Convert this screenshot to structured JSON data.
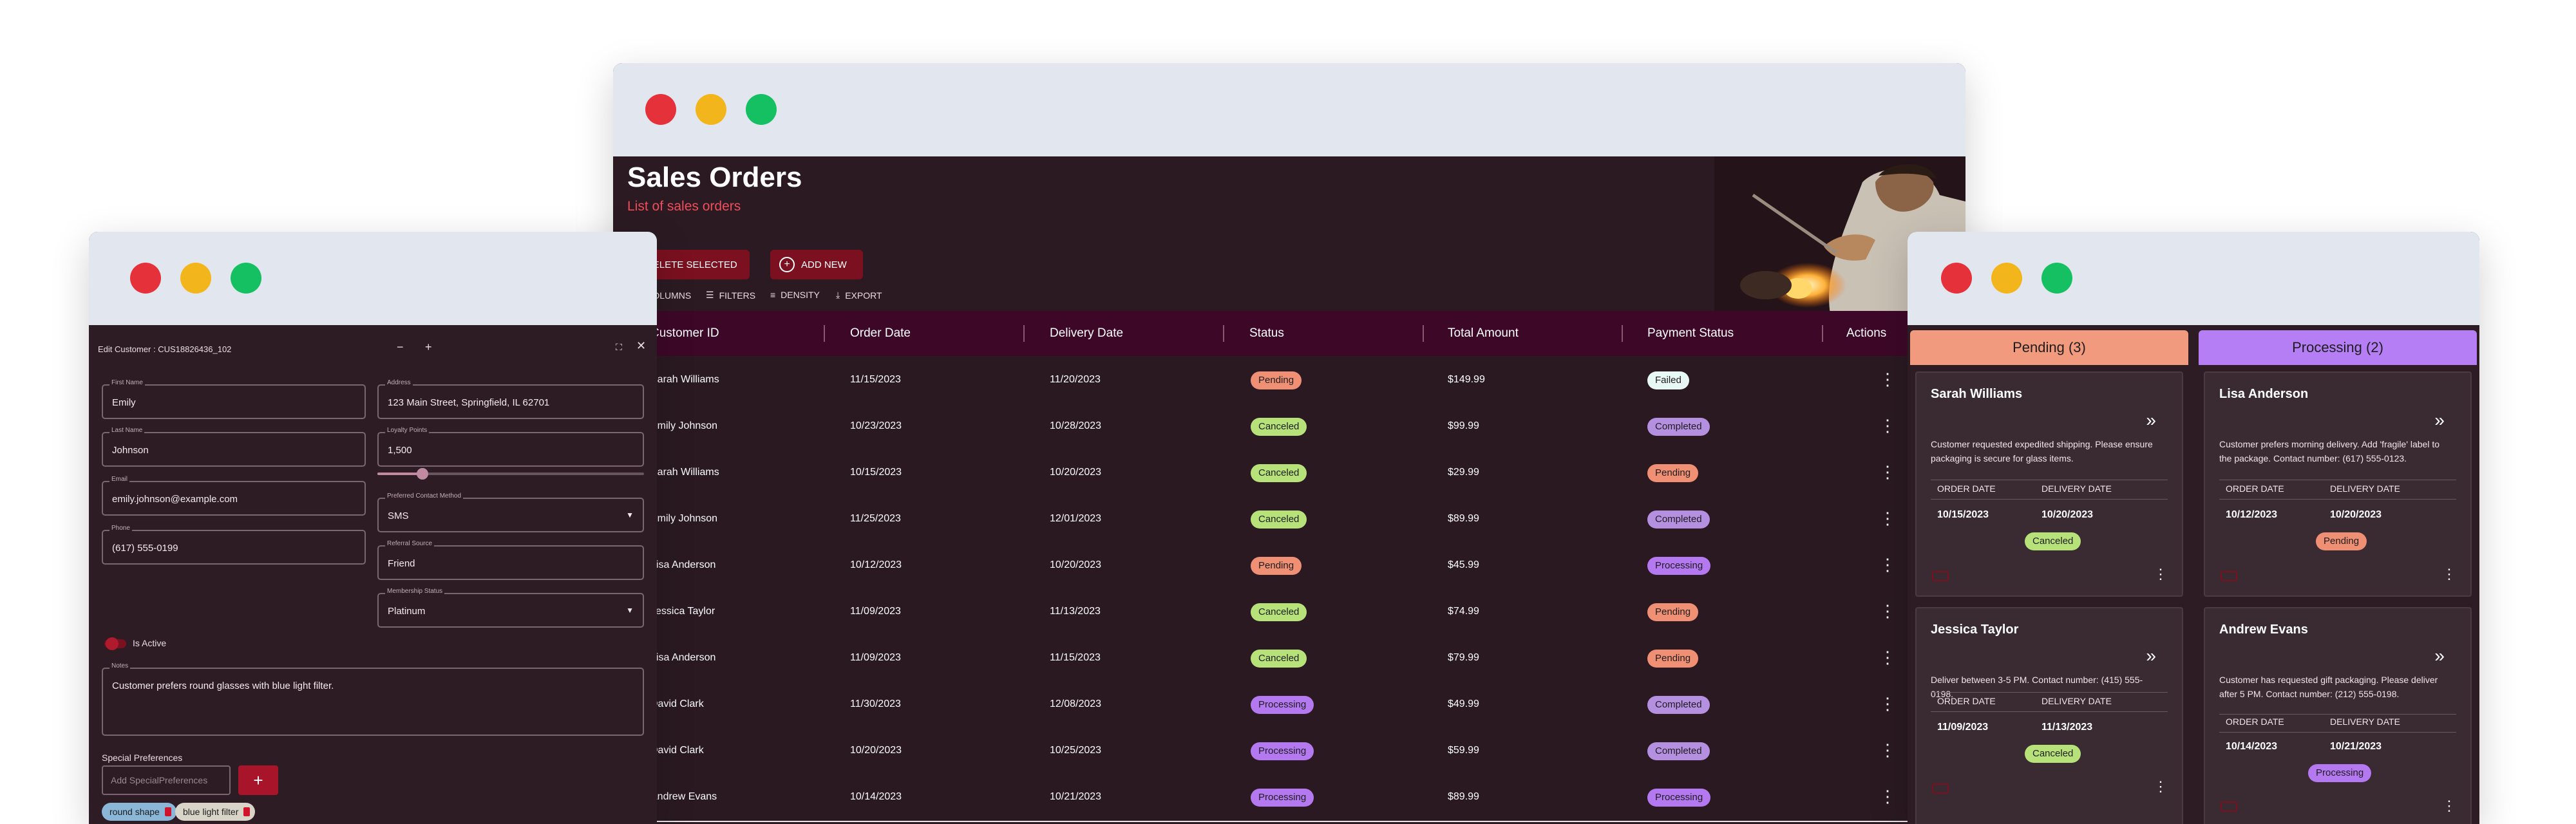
{
  "main": {
    "title": "Sales Orders",
    "subtitle": "List of sales orders",
    "actions": {
      "delete": "DELETE SELECTED",
      "add": "ADD NEW"
    },
    "toolbar": {
      "columns": "COLUMNS",
      "filters": "FILTERS",
      "density": "DENSITY",
      "export": "EXPORT"
    },
    "columns": [
      "Customer ID",
      "Order Date",
      "Delivery Date",
      "Status",
      "Total Amount",
      "Payment Status",
      "Actions"
    ],
    "rows": [
      {
        "customer": "Sarah Williams",
        "order": "11/15/2023",
        "delivery": "11/20/2023",
        "status": "Pending",
        "status_key": "pending",
        "amount": "$149.99",
        "payment": "Failed",
        "payment_key": "failed"
      },
      {
        "customer": "Emily Johnson",
        "order": "10/23/2023",
        "delivery": "10/28/2023",
        "status": "Canceled",
        "status_key": "canceled",
        "amount": "$99.99",
        "payment": "Completed",
        "payment_key": "completed"
      },
      {
        "customer": "Sarah Williams",
        "order": "10/15/2023",
        "delivery": "10/20/2023",
        "status": "Canceled",
        "status_key": "canceled",
        "amount": "$29.99",
        "payment": "Pending",
        "payment_key": "pending"
      },
      {
        "customer": "Emily Johnson",
        "order": "11/25/2023",
        "delivery": "12/01/2023",
        "status": "Canceled",
        "status_key": "canceled",
        "amount": "$89.99",
        "payment": "Completed",
        "payment_key": "completed"
      },
      {
        "customer": "Lisa Anderson",
        "order": "10/12/2023",
        "delivery": "10/20/2023",
        "status": "Pending",
        "status_key": "pending",
        "amount": "$45.99",
        "payment": "Processing",
        "payment_key": "processing"
      },
      {
        "customer": "Jessica Taylor",
        "order": "11/09/2023",
        "delivery": "11/13/2023",
        "status": "Canceled",
        "status_key": "canceled",
        "amount": "$74.99",
        "payment": "Pending",
        "payment_key": "pending"
      },
      {
        "customer": "Lisa Anderson",
        "order": "11/09/2023",
        "delivery": "11/15/2023",
        "status": "Canceled",
        "status_key": "canceled",
        "amount": "$79.99",
        "payment": "Pending",
        "payment_key": "pending"
      },
      {
        "customer": "David Clark",
        "order": "11/30/2023",
        "delivery": "12/08/2023",
        "status": "Processing",
        "status_key": "processing",
        "amount": "$49.99",
        "payment": "Completed",
        "payment_key": "completed"
      },
      {
        "customer": "David Clark",
        "order": "10/20/2023",
        "delivery": "10/25/2023",
        "status": "Processing",
        "status_key": "processing",
        "amount": "$59.99",
        "payment": "Completed",
        "payment_key": "completed"
      },
      {
        "customer": "Andrew Evans",
        "order": "10/14/2023",
        "delivery": "10/21/2023",
        "status": "Processing",
        "status_key": "processing",
        "amount": "$89.99",
        "payment": "Processing",
        "payment_key": "processing"
      }
    ]
  },
  "edit": {
    "title": "Edit Customer : CUS18826436_102",
    "fields": {
      "first_name": {
        "label": "First Name",
        "value": "Emily"
      },
      "last_name": {
        "label": "Last Name",
        "value": "Johnson"
      },
      "email": {
        "label": "Email",
        "value": "emily.johnson@example.com"
      },
      "phone": {
        "label": "Phone",
        "value": "(617) 555-0199"
      },
      "address": {
        "label": "Address",
        "value": "123 Main Street, Springfield, IL 62701"
      },
      "loyalty": {
        "label": "Loyalty Points",
        "value": "1,500"
      },
      "contact": {
        "label": "Preferred Contact Method",
        "value": "SMS"
      },
      "referral": {
        "label": "Referral Source",
        "value": "Friend"
      },
      "membership": {
        "label": "Membership Status",
        "value": "Platinum"
      },
      "notes": {
        "label": "Notes",
        "value": "Customer prefers round glasses with blue light filter."
      }
    },
    "loyalty_fraction": 0.17,
    "is_active_label": "Is Active",
    "special_label": "Special Preferences",
    "special_placeholder": "Add SpecialPreferences",
    "add_symbol": "+",
    "chips": [
      "round shape",
      "blue light filter"
    ]
  },
  "kanban": {
    "columns": [
      {
        "title": "Pending (3)",
        "color": "#f29a7e"
      },
      {
        "title": "Processing (2)",
        "color": "#b57ef5"
      }
    ],
    "order_date_label": "ORDER DATE",
    "delivery_date_label": "DELIVERY DATE",
    "cards": [
      {
        "name": "Sarah Williams",
        "note": "Customer requested expedited shipping. Please ensure packaging is secure for glass items.",
        "order": "10/15/2023",
        "delivery": "10/20/2023",
        "status": "Canceled"
      },
      {
        "name": "Jessica Taylor",
        "note": "Deliver between 3-5 PM. Contact number: (415) 555-0198.",
        "order": "11/09/2023",
        "delivery": "11/13/2023",
        "status": "Canceled"
      },
      {
        "name": "Lisa Anderson",
        "note": "Customer prefers morning delivery. Add 'fragile' label to the package. Contact number: (617) 555-0123.",
        "order": "10/12/2023",
        "delivery": "10/20/2023",
        "status": "Pending"
      },
      {
        "name": "Andrew Evans",
        "note": "Customer has requested gift packaging. Please deliver after 5 PM. Contact number: (212) 555-0198.",
        "order": "10/14/2023",
        "delivery": "10/21/2023",
        "status": "Processing"
      }
    ]
  }
}
